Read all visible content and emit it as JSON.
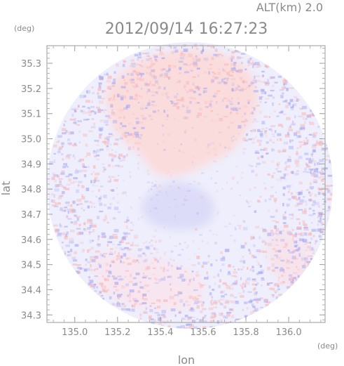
{
  "header": {
    "altitude_text": "ALT(km) 2.0",
    "timestamp": "2012/09/14 16:27:23"
  },
  "axes": {
    "y_unit": "(deg)",
    "x_unit": "(deg)",
    "xlabel": "lon",
    "ylabel": "lat",
    "x_ticks": [
      "135.0",
      "135.2",
      "135.4",
      "135.6",
      "135.8",
      "136.0"
    ],
    "y_ticks": [
      "35.3",
      "35.2",
      "35.1",
      "35.0",
      "34.9",
      "34.8",
      "34.7",
      "34.6",
      "34.5",
      "34.4",
      "34.3"
    ],
    "xlim": [
      134.87,
      136.17
    ],
    "ylim": [
      34.27,
      35.37
    ]
  },
  "radar_field": {
    "background_color": "#eeeefc",
    "positive_color": "#f8b9b9",
    "negative_color": "#a9a9f3"
  }
}
